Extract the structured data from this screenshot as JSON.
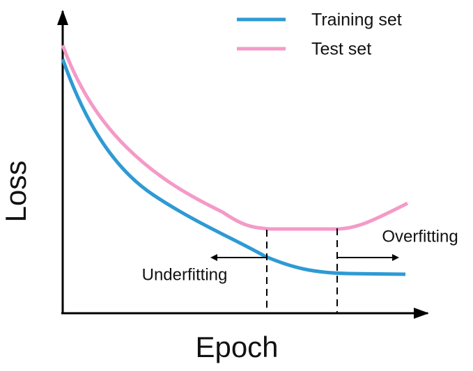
{
  "axes": {
    "y_label": "Loss",
    "x_label": "Epoch"
  },
  "legend": [
    {
      "label": "Training set"
    },
    {
      "label": "Test set"
    }
  ],
  "annotations": {
    "left": "Underfitting",
    "right": "Overfitting"
  }
}
